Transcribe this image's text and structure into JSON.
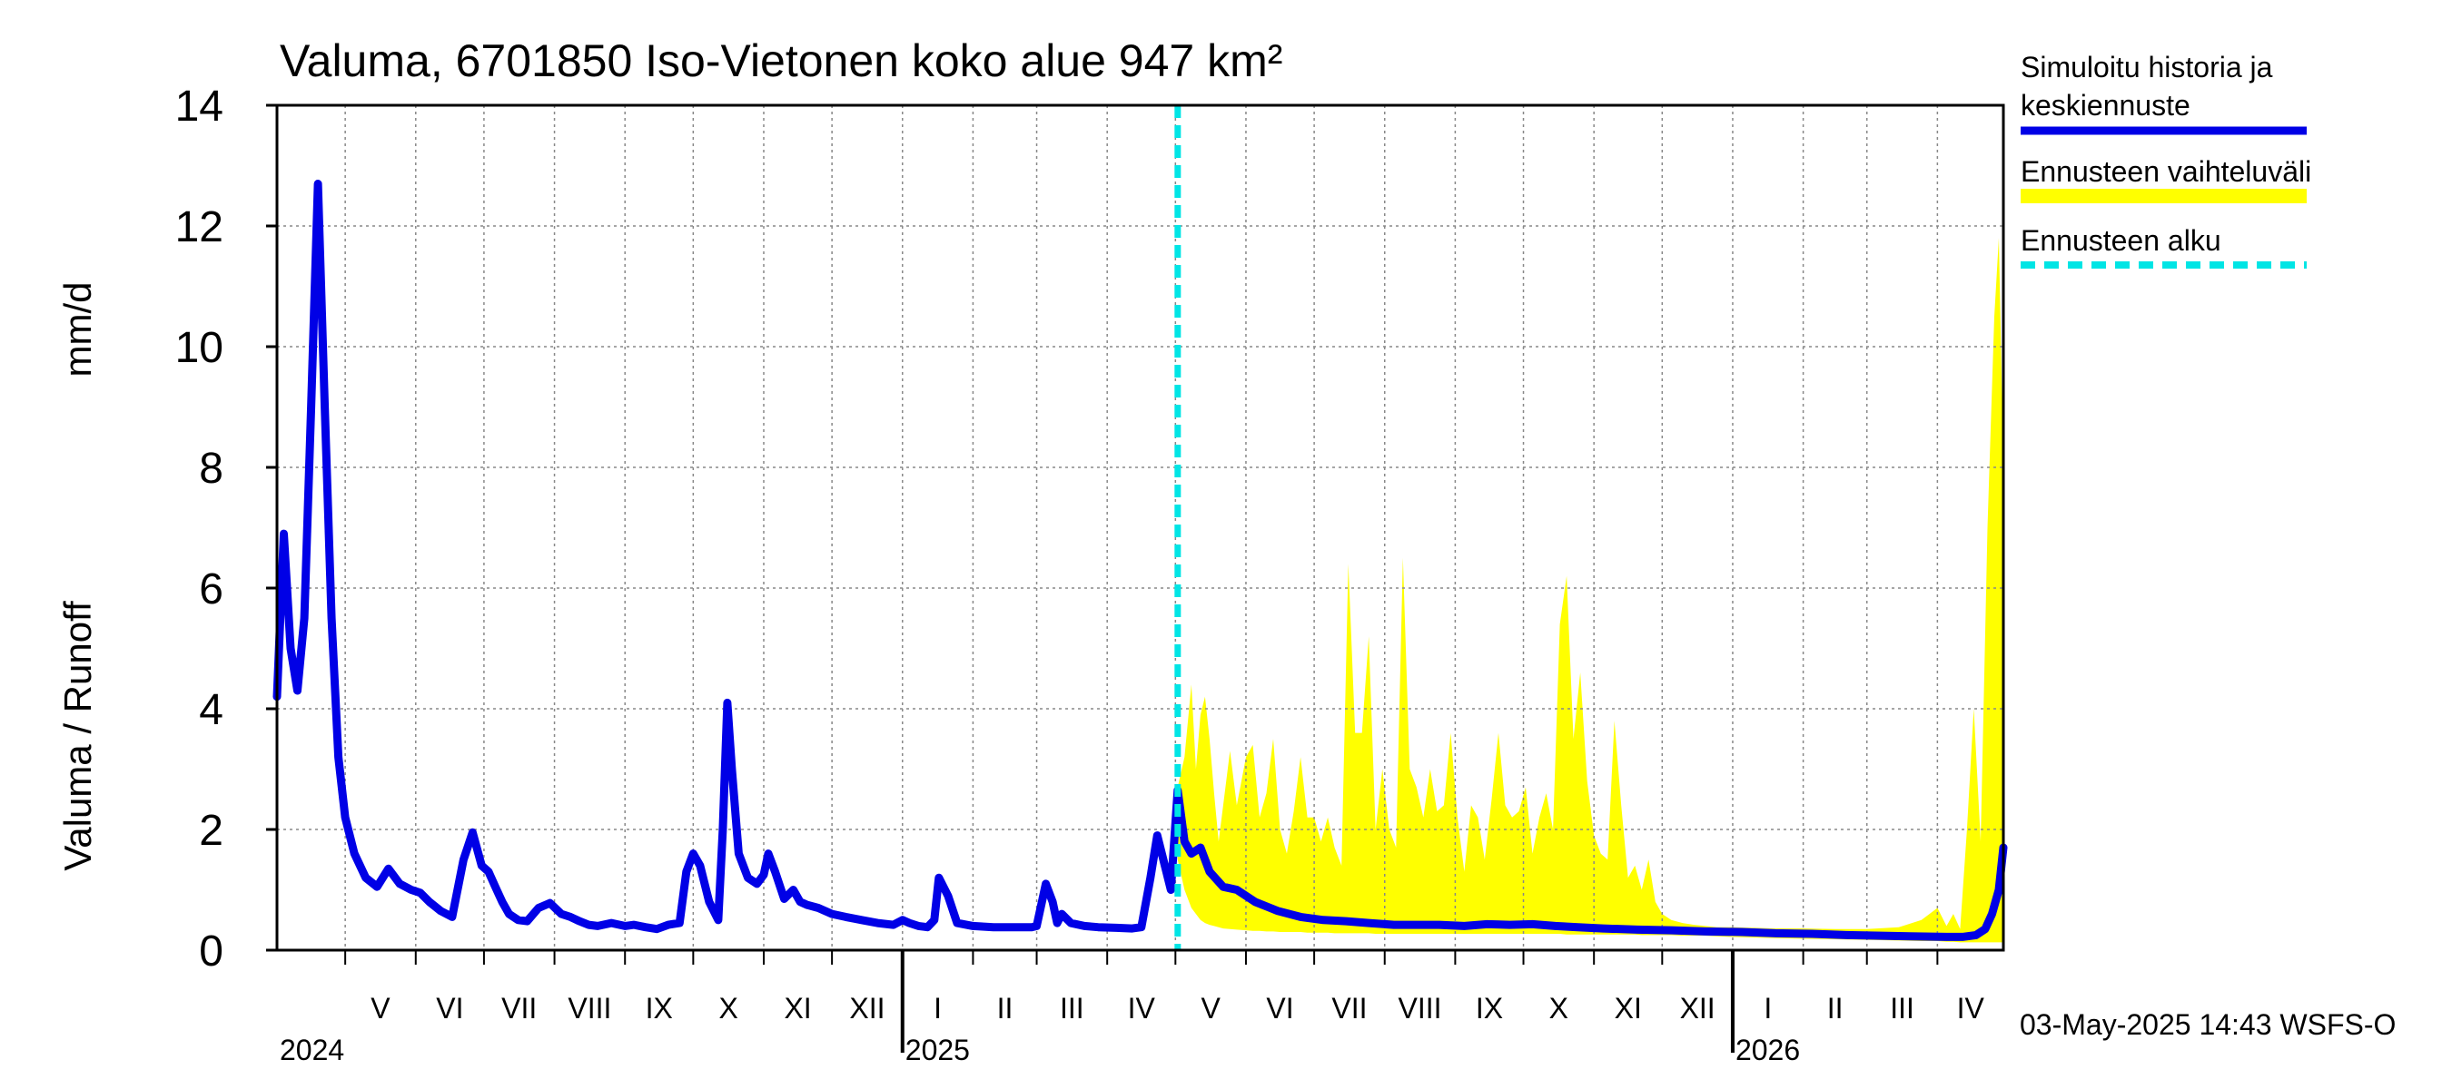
{
  "chart_data": {
    "type": "line",
    "title": "Valuma, 6701850 Iso-Vietonen koko alue 947 km²",
    "ylabel_fi": "Valuma / Runoff",
    "ylabel_unit": "mm/d",
    "ylim": [
      0,
      14
    ],
    "yticks": [
      0,
      2,
      4,
      6,
      8,
      10,
      12,
      14
    ],
    "xlim": [
      "2024-04-01",
      "2026-04-30"
    ],
    "grid": true,
    "legend_position": "top-right, outside plot",
    "months": [
      {
        "label": "V",
        "date": "2024-05-01"
      },
      {
        "label": "VI",
        "date": "2024-06-01"
      },
      {
        "label": "VII",
        "date": "2024-07-01"
      },
      {
        "label": "VIII",
        "date": "2024-08-01"
      },
      {
        "label": "IX",
        "date": "2024-09-01"
      },
      {
        "label": "X",
        "date": "2024-10-01"
      },
      {
        "label": "XI",
        "date": "2024-11-01"
      },
      {
        "label": "XII",
        "date": "2024-12-01"
      },
      {
        "label": "I",
        "date": "2025-01-01"
      },
      {
        "label": "II",
        "date": "2025-02-01"
      },
      {
        "label": "III",
        "date": "2025-03-01"
      },
      {
        "label": "IV",
        "date": "2025-04-01"
      },
      {
        "label": "V",
        "date": "2025-05-01"
      },
      {
        "label": "VI",
        "date": "2025-06-01"
      },
      {
        "label": "VII",
        "date": "2025-07-01"
      },
      {
        "label": "VIII",
        "date": "2025-08-01"
      },
      {
        "label": "IX",
        "date": "2025-09-01"
      },
      {
        "label": "X",
        "date": "2025-10-01"
      },
      {
        "label": "XI",
        "date": "2025-11-01"
      },
      {
        "label": "XII",
        "date": "2025-12-01"
      },
      {
        "label": "I",
        "date": "2026-01-01"
      },
      {
        "label": "II",
        "date": "2026-02-01"
      },
      {
        "label": "III",
        "date": "2026-03-01"
      },
      {
        "label": "IV",
        "date": "2026-04-01"
      }
    ],
    "years": [
      {
        "label": "2024",
        "date": "2024-04-01"
      },
      {
        "label": "2025",
        "date": "2025-01-01"
      },
      {
        "label": "2026",
        "date": "2026-01-01"
      }
    ],
    "forecast_start": "2025-05-02",
    "legend": {
      "history_line1": "Simuloitu historia ja",
      "history_line2": "keskiennuste",
      "range": "Ennusteen vaihteluväli",
      "start": "Ennusteen alku"
    },
    "colors": {
      "history": "#0000e6",
      "range": "#ffff00",
      "start": "#00e5e5",
      "grid": "#888888"
    },
    "footer": "03-May-2025 14:43 WSFS-O",
    "series": [
      {
        "name": "Simuloitu historia ja keskiennuste",
        "x": [
          "2024-04-01",
          "2024-04-04",
          "2024-04-07",
          "2024-04-10",
          "2024-04-13",
          "2024-04-16",
          "2024-04-19",
          "2024-04-22",
          "2024-04-25",
          "2024-04-28",
          "2024-05-01",
          "2024-05-05",
          "2024-05-10",
          "2024-05-15",
          "2024-05-20",
          "2024-05-25",
          "2024-05-30",
          "2024-06-03",
          "2024-06-07",
          "2024-06-12",
          "2024-06-17",
          "2024-06-22",
          "2024-06-26",
          "2024-06-30",
          "2024-07-03",
          "2024-07-06",
          "2024-07-09",
          "2024-07-12",
          "2024-07-16",
          "2024-07-20",
          "2024-07-25",
          "2024-07-30",
          "2024-08-04",
          "2024-08-08",
          "2024-08-12",
          "2024-08-16",
          "2024-08-20",
          "2024-08-26",
          "2024-09-01",
          "2024-09-05",
          "2024-09-10",
          "2024-09-15",
          "2024-09-20",
          "2024-09-25",
          "2024-09-28",
          "2024-10-01",
          "2024-10-04",
          "2024-10-08",
          "2024-10-12",
          "2024-10-14",
          "2024-10-16",
          "2024-10-18",
          "2024-10-21",
          "2024-10-25",
          "2024-10-29",
          "2024-11-01",
          "2024-11-03",
          "2024-11-06",
          "2024-11-10",
          "2024-11-14",
          "2024-11-17",
          "2024-11-20",
          "2024-11-25",
          "2024-12-01",
          "2024-12-07",
          "2024-12-14",
          "2024-12-21",
          "2024-12-28",
          "2025-01-01",
          "2025-01-04",
          "2025-01-08",
          "2025-01-12",
          "2025-01-15",
          "2025-01-17",
          "2025-01-21",
          "2025-01-25",
          "2025-02-01",
          "2025-02-10",
          "2025-02-20",
          "2025-02-25",
          "2025-02-27",
          "2025-03-01",
          "2025-03-05",
          "2025-03-08",
          "2025-03-10",
          "2025-03-12",
          "2025-03-16",
          "2025-03-22",
          "2025-03-28",
          "2025-04-05",
          "2025-04-12",
          "2025-04-16",
          "2025-04-20",
          "2025-04-23",
          "2025-04-27",
          "2025-04-29",
          "2025-05-02",
          "2025-05-05",
          "2025-05-08",
          "2025-05-12",
          "2025-05-16",
          "2025-05-22",
          "2025-05-28",
          "2025-06-05",
          "2025-06-15",
          "2025-06-25",
          "2025-07-05",
          "2025-07-15",
          "2025-07-25",
          "2025-08-05",
          "2025-08-15",
          "2025-08-25",
          "2025-09-05",
          "2025-09-15",
          "2025-09-25",
          "2025-10-05",
          "2025-10-15",
          "2025-10-25",
          "2025-11-05",
          "2025-11-20",
          "2025-12-05",
          "2025-12-20",
          "2026-01-05",
          "2026-01-20",
          "2026-02-05",
          "2026-02-20",
          "2026-03-05",
          "2026-03-20",
          "2026-04-05",
          "2026-04-12",
          "2026-04-18",
          "2026-04-22",
          "2026-04-25",
          "2026-04-28",
          "2026-04-30"
        ],
        "y": [
          4.2,
          6.9,
          5.0,
          4.3,
          5.5,
          9.0,
          12.7,
          9.0,
          5.5,
          3.2,
          2.2,
          1.6,
          1.2,
          1.05,
          1.35,
          1.1,
          1.0,
          0.95,
          0.8,
          0.65,
          0.55,
          1.5,
          1.95,
          1.4,
          1.3,
          1.05,
          0.8,
          0.6,
          0.5,
          0.48,
          0.7,
          0.78,
          0.6,
          0.55,
          0.48,
          0.42,
          0.4,
          0.45,
          0.4,
          0.42,
          0.38,
          0.35,
          0.42,
          0.45,
          1.3,
          1.6,
          1.4,
          0.8,
          0.5,
          2.0,
          4.1,
          3.0,
          1.6,
          1.2,
          1.1,
          1.25,
          1.6,
          1.3,
          0.85,
          1.0,
          0.8,
          0.75,
          0.7,
          0.6,
          0.55,
          0.5,
          0.45,
          0.42,
          0.5,
          0.45,
          0.4,
          0.38,
          0.5,
          1.2,
          0.9,
          0.45,
          0.4,
          0.38,
          0.38,
          0.38,
          0.38,
          0.4,
          1.1,
          0.8,
          0.45,
          0.6,
          0.45,
          0.4,
          0.38,
          0.37,
          0.36,
          0.38,
          1.2,
          1.9,
          1.3,
          1.0,
          2.65,
          1.8,
          1.6,
          1.7,
          1.3,
          1.05,
          1.0,
          0.8,
          0.65,
          0.55,
          0.5,
          0.48,
          0.45,
          0.42,
          0.42,
          0.42,
          0.4,
          0.43,
          0.42,
          0.43,
          0.4,
          0.38,
          0.36,
          0.34,
          0.33,
          0.31,
          0.3,
          0.28,
          0.27,
          0.25,
          0.24,
          0.23,
          0.22,
          0.22,
          0.25,
          0.35,
          0.6,
          1.0,
          1.7
        ]
      },
      {
        "name": "Ennusteen vaihteluväli",
        "x": [
          "2025-05-02",
          "2025-05-05",
          "2025-05-08",
          "2025-05-10",
          "2025-05-12",
          "2025-05-14",
          "2025-05-16",
          "2025-05-18",
          "2025-05-20",
          "2025-05-22",
          "2025-05-25",
          "2025-05-28",
          "2025-06-01",
          "2025-06-04",
          "2025-06-07",
          "2025-06-10",
          "2025-06-13",
          "2025-06-16",
          "2025-06-19",
          "2025-06-22",
          "2025-06-25",
          "2025-06-28",
          "2025-07-01",
          "2025-07-04",
          "2025-07-07",
          "2025-07-10",
          "2025-07-13",
          "2025-07-16",
          "2025-07-19",
          "2025-07-22",
          "2025-07-25",
          "2025-07-28",
          "2025-07-31",
          "2025-08-03",
          "2025-08-06",
          "2025-08-09",
          "2025-08-12",
          "2025-08-15",
          "2025-08-18",
          "2025-08-21",
          "2025-08-24",
          "2025-08-27",
          "2025-08-30",
          "2025-09-02",
          "2025-09-05",
          "2025-09-08",
          "2025-09-11",
          "2025-09-14",
          "2025-09-17",
          "2025-09-20",
          "2025-09-23",
          "2025-09-26",
          "2025-09-29",
          "2025-10-02",
          "2025-10-05",
          "2025-10-08",
          "2025-10-11",
          "2025-10-14",
          "2025-10-17",
          "2025-10-20",
          "2025-10-23",
          "2025-10-26",
          "2025-10-29",
          "2025-11-01",
          "2025-11-04",
          "2025-11-07",
          "2025-11-10",
          "2025-11-13",
          "2025-11-16",
          "2025-11-19",
          "2025-11-22",
          "2025-11-25",
          "2025-11-28",
          "2025-12-01",
          "2025-12-05",
          "2025-12-10",
          "2025-12-15",
          "2025-12-20",
          "2025-12-25",
          "2026-01-01",
          "2026-01-10",
          "2026-01-20",
          "2026-02-01",
          "2026-02-15",
          "2026-03-01",
          "2026-03-15",
          "2026-03-25",
          "2026-04-01",
          "2026-04-05",
          "2026-04-08",
          "2026-04-11",
          "2026-04-14",
          "2026-04-17",
          "2026-04-20",
          "2026-04-23",
          "2026-04-26",
          "2026-04-28",
          "2026-04-30"
        ],
        "upper": [
          2.7,
          3.2,
          4.4,
          3.0,
          3.9,
          4.2,
          3.5,
          2.6,
          1.8,
          2.4,
          3.3,
          2.4,
          3.2,
          3.4,
          2.2,
          2.6,
          3.5,
          2.0,
          1.6,
          2.3,
          3.2,
          2.2,
          2.2,
          1.8,
          2.2,
          1.7,
          1.4,
          6.4,
          3.6,
          3.6,
          5.2,
          2.0,
          3.0,
          2.0,
          1.7,
          6.5,
          3.0,
          2.7,
          2.2,
          3.0,
          2.3,
          2.4,
          3.6,
          2.2,
          1.3,
          2.4,
          2.2,
          1.5,
          2.5,
          3.6,
          2.4,
          2.2,
          2.3,
          2.7,
          1.6,
          2.2,
          2.6,
          2.0,
          5.4,
          6.2,
          3.5,
          4.6,
          2.8,
          1.9,
          1.6,
          1.5,
          3.8,
          2.4,
          1.2,
          1.4,
          1.0,
          1.5,
          0.8,
          0.6,
          0.5,
          0.45,
          0.42,
          0.4,
          0.38,
          0.38,
          0.37,
          0.36,
          0.36,
          0.35,
          0.35,
          0.38,
          0.5,
          0.7,
          0.4,
          0.6,
          0.35,
          2.0,
          4.0,
          1.8,
          7.0,
          10.5,
          11.8,
          8.0
        ],
        "lower": [
          1.5,
          1.0,
          0.7,
          0.6,
          0.5,
          0.45,
          0.42,
          0.4,
          0.38,
          0.36,
          0.35,
          0.34,
          0.33,
          0.32,
          0.32,
          0.31,
          0.31,
          0.3,
          0.3,
          0.3,
          0.3,
          0.29,
          0.29,
          0.29,
          0.29,
          0.28,
          0.28,
          0.28,
          0.28,
          0.28,
          0.28,
          0.27,
          0.27,
          0.27,
          0.27,
          0.27,
          0.27,
          0.27,
          0.27,
          0.27,
          0.27,
          0.27,
          0.27,
          0.27,
          0.27,
          0.27,
          0.27,
          0.27,
          0.27,
          0.27,
          0.27,
          0.27,
          0.27,
          0.27,
          0.27,
          0.27,
          0.27,
          0.27,
          0.27,
          0.26,
          0.26,
          0.26,
          0.26,
          0.26,
          0.26,
          0.26,
          0.26,
          0.26,
          0.26,
          0.26,
          0.25,
          0.25,
          0.25,
          0.25,
          0.25,
          0.24,
          0.24,
          0.24,
          0.23,
          0.22,
          0.21,
          0.2,
          0.19,
          0.18,
          0.17,
          0.16,
          0.15,
          0.15,
          0.14,
          0.14,
          0.13,
          0.13,
          0.13,
          0.13,
          0.13,
          0.13,
          0.13,
          0.13
        ]
      }
    ]
  }
}
